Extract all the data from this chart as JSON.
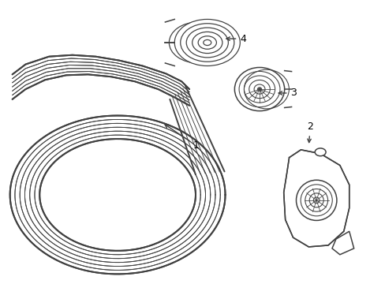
{
  "background_color": "#ffffff",
  "line_color": "#404040",
  "label_color": "#000000",
  "figsize": [
    4.89,
    3.6
  ],
  "dpi": 100,
  "n_ribs": 6
}
